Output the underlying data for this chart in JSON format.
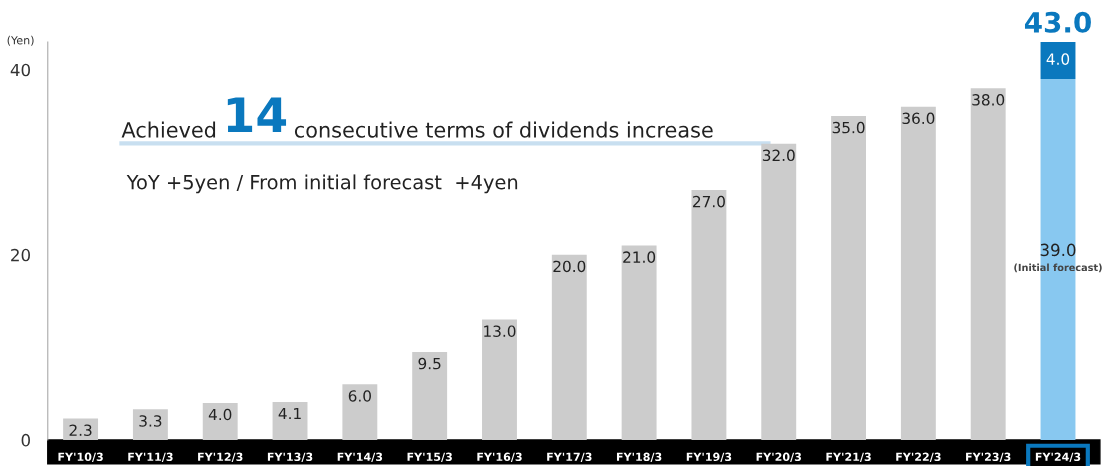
{
  "chart_data": {
    "type": "bar",
    "stacked": true,
    "ylabel": "(Yen)",
    "ylim": [
      0,
      43
    ],
    "yticks": [
      0,
      20,
      40
    ],
    "grid": false,
    "categories": [
      "FY'10/3",
      "FY'11/3",
      "FY'12/3",
      "FY'13/3",
      "FY'14/3",
      "FY'15/3",
      "FY'16/3",
      "FY'17/3",
      "FY'18/3",
      "FY'19/3",
      "FY'20/3",
      "FY'21/3",
      "FY'22/3",
      "FY'23/3",
      "FY'24/3"
    ],
    "series": [
      {
        "colors": [
          "#cccccc",
          "#cccccc",
          "#cccccc",
          "#cccccc",
          "#cccccc",
          "#cccccc",
          "#cccccc",
          "#cccccc",
          "#cccccc",
          "#cccccc",
          "#cccccc",
          "#cccccc",
          "#cccccc",
          "#cccccc",
          "#88c8f0"
        ],
        "values": [
          2.3,
          3.3,
          4.0,
          4.1,
          6.0,
          9.5,
          13.0,
          20.0,
          21.0,
          27.0,
          32.0,
          35.0,
          36.0,
          38.0,
          39.0
        ],
        "value_labels": [
          "2.3",
          "3.3",
          "4.0",
          "4.1",
          "6.0",
          "9.5",
          "13.0",
          "20.0",
          "21.0",
          "27.0",
          "32.0",
          "35.0",
          "36.0",
          "38.0",
          "39.0"
        ]
      },
      {
        "color": "#0a78be",
        "values": [
          null,
          null,
          null,
          null,
          null,
          null,
          null,
          null,
          null,
          null,
          null,
          null,
          null,
          null,
          4.0
        ],
        "value_labels": [
          null,
          null,
          null,
          null,
          null,
          null,
          null,
          null,
          null,
          null,
          null,
          null,
          null,
          null,
          "4.0"
        ]
      }
    ],
    "totals": [
      null,
      null,
      null,
      null,
      null,
      null,
      null,
      null,
      null,
      null,
      null,
      null,
      null,
      null,
      "43.0"
    ],
    "annotations": [
      "Achieved",
      "14",
      "consecutive terms of dividends increase",
      "YoY +5yen / From initial forecast  +4yen",
      "(Initial forecast)"
    ]
  }
}
